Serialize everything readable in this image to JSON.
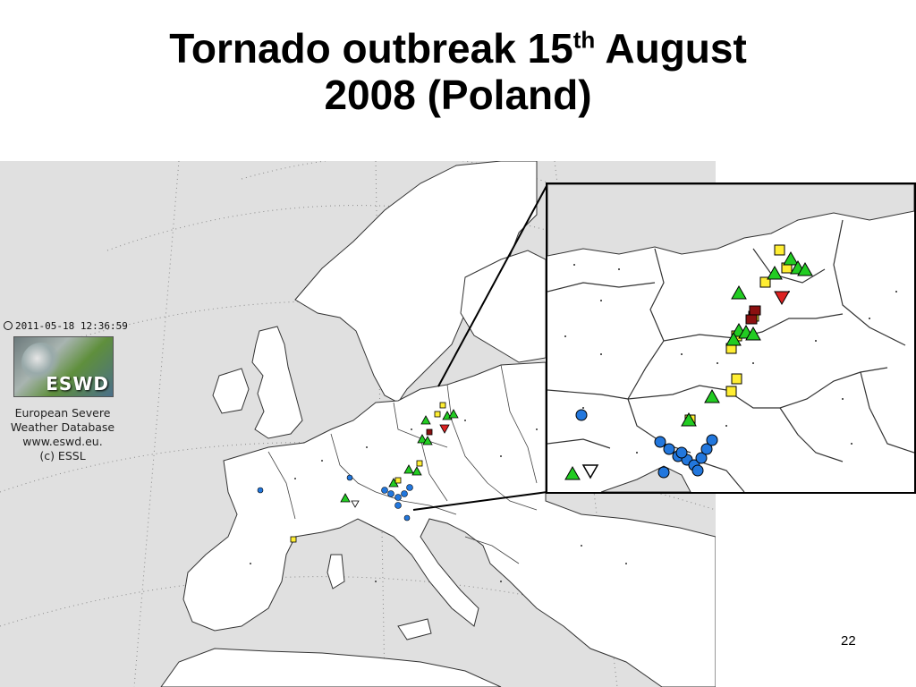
{
  "slide": {
    "title_part1": "Tornado outbreak 15",
    "title_sup": "th",
    "title_part2": " August",
    "title_line2": "2008 (Poland)",
    "slide_number": "22"
  },
  "map_legend": {
    "timestamp": "2011-05-18 12:36:59",
    "logo_text": "ESWD",
    "org_lines": [
      "European Severe",
      "Weather Database",
      "www.eswd.eu.",
      "(c) ESSL"
    ]
  },
  "colors": {
    "sea": "#e0e0e0",
    "land": "#ffffff",
    "border": "#333333",
    "tornado": "#22cc22",
    "wind": "#ffee33",
    "hail": "#2277dd",
    "rain": "#dd2222",
    "large_hail": "#222222"
  },
  "icons": {
    "tornado": "green-triangle-icon",
    "wind": "yellow-square-icon",
    "hail": "blue-circle-icon",
    "heavy_rain": "red-down-triangle-icon",
    "other": "white-down-triangle-icon"
  }
}
